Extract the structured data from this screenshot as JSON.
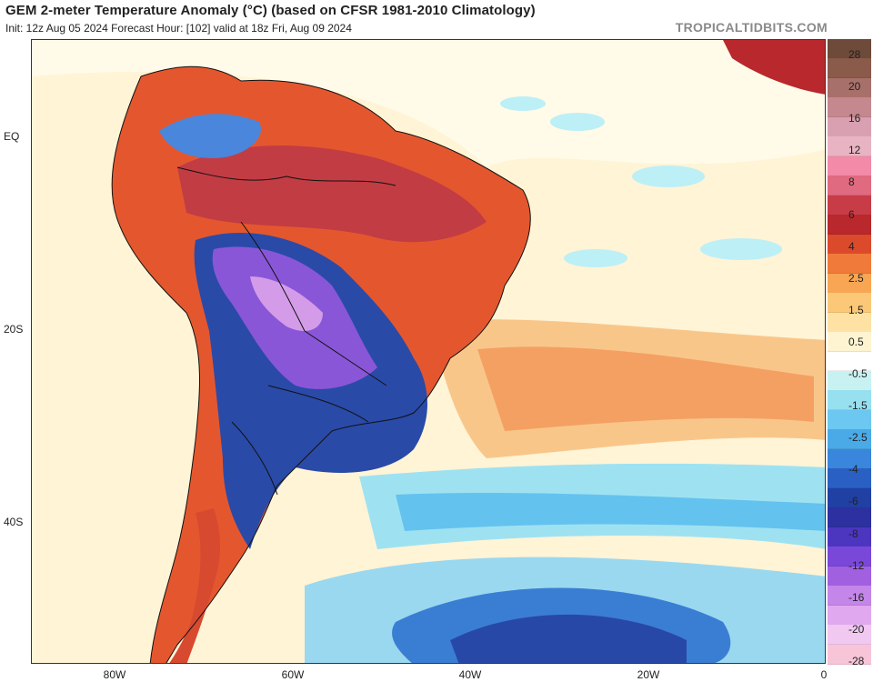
{
  "header": {
    "title": "GEM 2-meter Temperature Anomaly (°C) (based on CFSR 1981-2010 Climatology)",
    "subtitle": "Init: 12z Aug 05 2024   Forecast Hour: [102]   valid at 18z Fri, Aug 09 2024",
    "watermark": "TROPICALTIDBITS.COM"
  },
  "map": {
    "lat_labels": [
      "EQ",
      "20S",
      "40S"
    ],
    "lon_labels": [
      "80W",
      "60W",
      "40W",
      "20W",
      "0"
    ]
  },
  "colorbar": {
    "colors": [
      "#6d4a3a",
      "#8a5a4a",
      "#a8706a",
      "#c4888e",
      "#d8a0b0",
      "#e8b4c4",
      "#f28aa8",
      "#e06a80",
      "#c83c48",
      "#b8282c",
      "#dc4a2c",
      "#f07a3a",
      "#f8a654",
      "#fbc878",
      "#fde2a4",
      "#fff4d2",
      "#ffffff",
      "#c8f2f2",
      "#96e0f0",
      "#6cc8f0",
      "#4aaae8",
      "#3a86dc",
      "#2a60c4",
      "#2040a4",
      "#2c30a0",
      "#4c36c0",
      "#7a48d8",
      "#a060e0",
      "#c486e8",
      "#e0a8ee",
      "#f0c8f0",
      "#f8c4d8"
    ],
    "tick_labels": [
      "28",
      "20",
      "16",
      "12",
      "8",
      "6",
      "4",
      "2.5",
      "1.5",
      "0.5",
      "-0.5",
      "-1.5",
      "-2.5",
      "-4",
      "-6",
      "-8",
      "-12",
      "-16",
      "-20",
      "-28"
    ]
  }
}
